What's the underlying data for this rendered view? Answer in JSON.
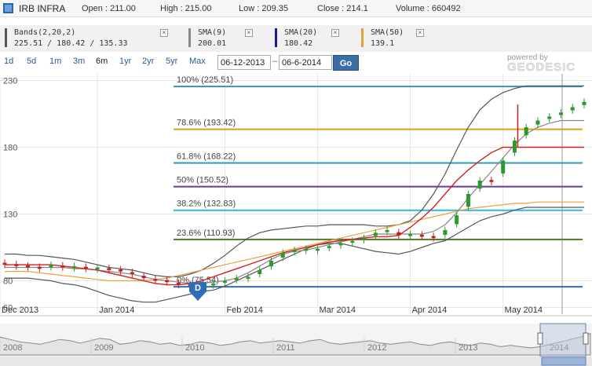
{
  "quote": {
    "symbol": "IRB INFRA",
    "open": "Open : 211.00",
    "high": "High : 215.00",
    "low": "Low : 209.35",
    "close": "Close : 214.1",
    "volume": "Volume : 660492"
  },
  "indicators": [
    {
      "name": "Bands(2,20,2)",
      "value": "225.51 / 180.42 / 135.33",
      "color": "#555555"
    },
    {
      "name": "SMA(9)",
      "value": "200.01",
      "color": "#888888"
    },
    {
      "name": "SMA(20)",
      "value": "180.42",
      "color": "#1a1aa0"
    },
    {
      "name": "SMA(50)",
      "value": "139.1",
      "color": "#e8a23a"
    }
  ],
  "controls": {
    "ranges": [
      "1d",
      "5d",
      "1m",
      "3m",
      "6m",
      "1yr",
      "2yr",
      "5yr",
      "Max"
    ],
    "active_range": "6m",
    "from_date": "06-12-2013",
    "to_date": "06-6-2014",
    "go_label": "Go",
    "close_glyph": "×"
  },
  "branding": {
    "powered": "powered by",
    "name": "GEODESIC"
  },
  "marker": {
    "label": "D",
    "color": "#2f6db5"
  },
  "colors": {
    "up": "#2a9a2a",
    "down": "#c42020",
    "grid": "#e6e6e6",
    "sma20": "#d42020",
    "sma50": "#e8a23a",
    "sma9": "#888888",
    "bands": "#555555"
  },
  "chart_data": {
    "type": "candlestick",
    "period": "06-12-2013 to 06-6-2014",
    "y_ticks": [
      230,
      180,
      130,
      80,
      60
    ],
    "ylim": [
      55,
      235
    ],
    "x_labels": [
      "Dec 2013",
      "Jan 2014",
      "Feb 2014",
      "Mar 2014",
      "Apr 2014",
      "May 2014"
    ],
    "fibonacci": [
      {
        "label": "100% (225.51)",
        "level": 225.51,
        "color": "#3a8fb7"
      },
      {
        "label": "78.6% (193.42)",
        "level": 193.42,
        "color": "#d9a21b"
      },
      {
        "label": "61.8% (168.22)",
        "level": 168.22,
        "color": "#2f9ab8"
      },
      {
        "label": "50% (150.52)",
        "level": 150.52,
        "color": "#6a3a9a"
      },
      {
        "label": "38.2% (132.83)",
        "level": 132.83,
        "color": "#2fb8d8"
      },
      {
        "label": "23.6% (110.93)",
        "level": 110.93,
        "color": "#4e7a2a"
      },
      {
        "label": "0% (75.54)",
        "level": 75.54,
        "color": "#2f6db5"
      }
    ],
    "close_trend": [
      92,
      91,
      90,
      89,
      92,
      90,
      91,
      89,
      90,
      88,
      87,
      85,
      82,
      80,
      79,
      77,
      76,
      77,
      78,
      80,
      82,
      83,
      88,
      95,
      101,
      103,
      104,
      104,
      106,
      108,
      110,
      112,
      116,
      118,
      114,
      115,
      113,
      112,
      118,
      129,
      145,
      155,
      154,
      170,
      185,
      195,
      200,
      203,
      206,
      210,
      214
    ],
    "sma9": [
      90,
      90,
      90,
      90,
      90,
      90,
      89,
      89,
      88,
      87,
      86,
      85,
      83,
      81,
      80,
      79,
      78,
      78,
      79,
      80,
      82,
      86,
      91,
      96,
      100,
      102,
      103,
      105,
      107,
      109,
      111,
      113,
      115,
      115,
      115,
      115,
      115,
      117,
      122,
      131,
      142,
      152,
      162,
      172,
      182,
      190,
      195,
      198,
      200,
      200,
      200
    ],
    "sma20": [
      92,
      92,
      92,
      92,
      92,
      91,
      90,
      89,
      88,
      86,
      84,
      82,
      80,
      78,
      77,
      77,
      78,
      80,
      83,
      86,
      89,
      92,
      95,
      98,
      101,
      103,
      105,
      107,
      109,
      110,
      111,
      112,
      113,
      113,
      114,
      120,
      127,
      135,
      145,
      155,
      163,
      170,
      176,
      180,
      180,
      180,
      180,
      180,
      180,
      180,
      180
    ],
    "sma50": [
      87,
      87,
      87,
      86,
      85,
      84,
      83,
      82,
      81,
      80,
      80,
      80,
      80,
      81,
      82,
      84,
      86,
      88,
      90,
      92,
      94,
      96,
      98,
      100,
      102,
      104,
      106,
      108,
      110,
      112,
      114,
      116,
      118,
      120,
      122,
      124,
      126,
      128,
      130,
      132,
      134,
      135,
      136,
      137,
      138,
      138,
      139,
      139,
      139,
      139,
      139
    ],
    "band_upper": [
      100,
      100,
      99,
      99,
      98,
      97,
      96,
      94,
      92,
      90,
      89,
      88,
      86,
      84,
      83,
      83,
      85,
      88,
      93,
      99,
      106,
      112,
      116,
      118,
      119,
      120,
      121,
      121,
      122,
      122,
      122,
      122,
      121,
      121,
      122,
      125,
      133,
      145,
      160,
      178,
      195,
      208,
      216,
      221,
      224,
      226,
      226,
      226,
      226,
      226,
      226
    ],
    "band_lower": [
      82,
      82,
      82,
      81,
      80,
      78,
      77,
      75,
      72,
      69,
      67,
      65,
      64,
      64,
      66,
      68,
      70,
      72,
      73,
      76,
      80,
      84,
      88,
      92,
      96,
      100,
      104,
      107,
      108,
      108,
      106,
      104,
      102,
      101,
      100,
      102,
      105,
      108,
      110,
      115,
      120,
      125,
      128,
      130,
      133,
      135,
      135,
      135,
      135,
      135,
      135
    ]
  },
  "navigator": {
    "year_labels": [
      "2008",
      "2009",
      "2010",
      "2011",
      "2012",
      "2013",
      "2014"
    ],
    "trend": [
      60,
      58,
      56,
      55,
      54,
      56,
      58,
      57,
      55,
      57,
      59,
      58,
      54,
      55,
      57,
      56,
      54,
      55,
      53,
      54,
      56,
      55,
      53,
      54,
      56,
      57,
      55,
      56,
      57,
      56,
      55,
      57,
      58,
      55,
      54,
      55,
      56,
      57,
      55,
      54,
      55,
      56,
      54,
      53,
      55,
      56,
      54,
      53,
      55,
      54,
      52,
      53,
      52,
      51,
      52,
      54,
      56,
      58,
      60,
      63
    ]
  }
}
